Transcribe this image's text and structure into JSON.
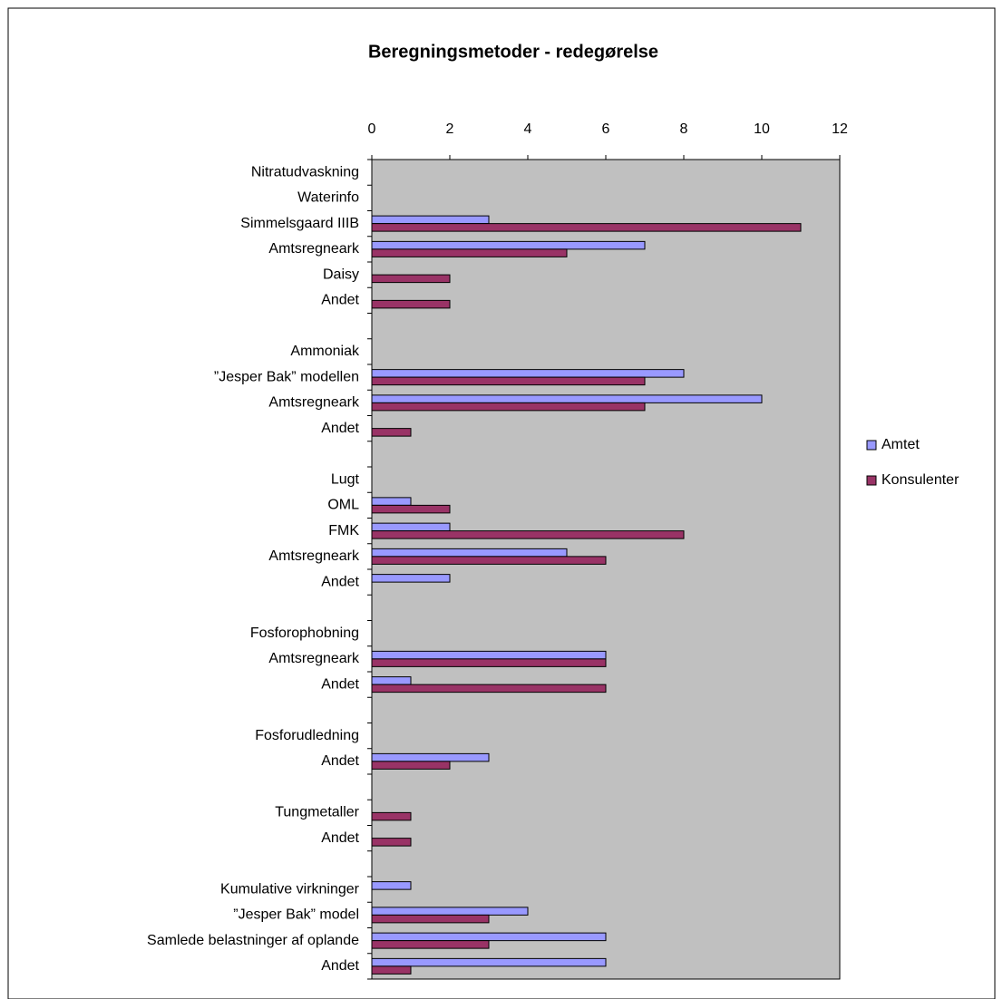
{
  "chart_data": {
    "type": "bar",
    "orientation": "horizontal",
    "title": "Beregningsmetoder - redegørelse",
    "categories": [
      "Nitratudvaskning",
      "Waterinfo",
      "Simmelsgaard IIIB",
      "Amtsregneark",
      "Daisy",
      "Andet",
      null,
      "Ammoniak",
      "”Jesper Bak” modellen",
      "Amtsregneark",
      "Andet",
      null,
      "Lugt",
      "OML",
      "FMK",
      "Amtsregneark",
      "Andet",
      null,
      "Fosforophobning",
      "Amtsregneark",
      "Andet",
      null,
      "Fosforudledning",
      "Andet",
      null,
      "Tungmetaller",
      "Andet",
      null,
      "Kumulative virkninger",
      "”Jesper Bak” model",
      "Samlede belastninger af oplande",
      "Andet"
    ],
    "series": [
      {
        "name": "Amtet",
        "color": "#9999ff",
        "values": [
          null,
          null,
          3,
          7,
          null,
          null,
          null,
          null,
          8,
          10,
          null,
          null,
          null,
          1,
          2,
          5,
          2,
          null,
          null,
          6,
          1,
          null,
          null,
          3,
          null,
          null,
          null,
          null,
          1,
          4,
          6,
          6
        ]
      },
      {
        "name": "Konsulenter",
        "color": "#993366",
        "values": [
          null,
          null,
          11,
          5,
          2,
          2,
          null,
          null,
          7,
          7,
          1,
          null,
          null,
          2,
          8,
          6,
          null,
          null,
          null,
          6,
          6,
          null,
          null,
          2,
          null,
          1,
          1,
          null,
          null,
          3,
          3,
          1
        ]
      }
    ],
    "xlim": [
      0,
      12
    ],
    "xticks": [
      0,
      2,
      4,
      6,
      8,
      10,
      12
    ],
    "plot_background": "#c0c0c0",
    "legend": "right"
  }
}
